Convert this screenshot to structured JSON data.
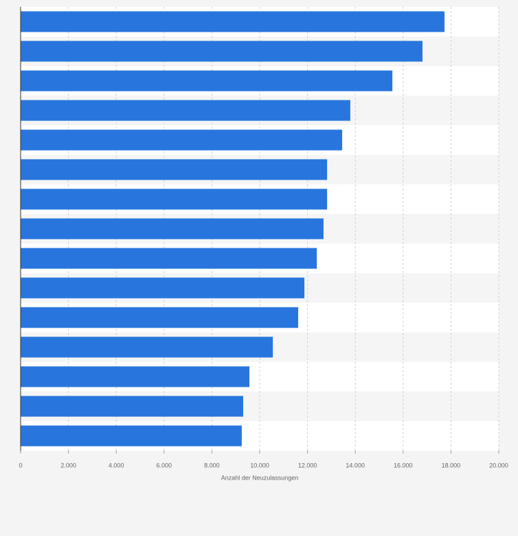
{
  "chart_data": {
    "type": "bar",
    "orientation": "horizontal",
    "xlabel": "Anzahl der Neuzulassungen",
    "categories": [
      null,
      null,
      null,
      null,
      null,
      null,
      null,
      null,
      null,
      null,
      null,
      null,
      null,
      null,
      null
    ],
    "values": [
      17730,
      16810,
      15550,
      13790,
      13450,
      12820,
      12820,
      12670,
      12390,
      11870,
      11610,
      10550,
      9570,
      9310,
      9250
    ],
    "color": "#2876dd",
    "xlim": [
      0,
      20000
    ],
    "xticks": [
      0,
      {
        "value": 2000,
        "label": "2.000"
      },
      {
        "value": 4000,
        "label": "4.000"
      },
      {
        "value": 6000,
        "label": "6.000"
      },
      {
        "value": 8000,
        "label": "8.000"
      },
      {
        "value": 10000,
        "label": "10.000"
      },
      {
        "value": 12000,
        "label": "12.000"
      },
      {
        "value": 14000,
        "label": "14.000"
      },
      {
        "value": 16000,
        "label": "16.000"
      },
      {
        "value": 18000,
        "label": "18.000"
      },
      {
        "value": 20000,
        "label": "20.000"
      }
    ],
    "grid": true
  }
}
